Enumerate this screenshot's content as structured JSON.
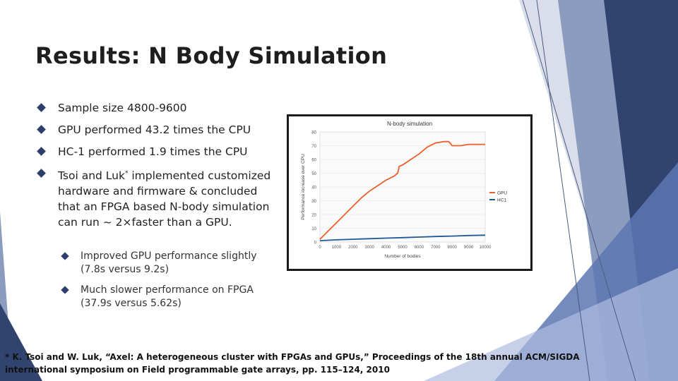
{
  "slide": {
    "title": "Results: N Body Simulation",
    "bullets": [
      {
        "text": "Sample size 4800-9600"
      },
      {
        "text": "GPU performed 43.2 times the CPU"
      },
      {
        "text": "HC-1 performed 1.9 times the CPU"
      },
      {
        "text_before": "Tsoi and Luk",
        "sup": "*",
        "text_after": " implemented customized hardware and  firmware & concluded that an FPGA based N-body simulation can run ~ 2×faster than a GPU."
      }
    ],
    "sub_bullets": [
      {
        "text": "Improved GPU performance slightly (7.8s versus 9.2s)"
      },
      {
        "text": "Much slower performance on FPGA (37.9s versus 5.62s)"
      }
    ],
    "footnote": "* K. Tsoi and W. Luk, “Axel: A heterogeneous cluster with FPGAs and GPUs,” Proceedings of the 18th annual ACM/SIGDA international symposium on Field programmable gate arrays, pp. 115–124, 2010"
  },
  "colors": {
    "accent_dark": "#2c3f6b",
    "gpu_line": "#e8602c",
    "hc1_line": "#1f5a96"
  },
  "chart_data": {
    "type": "line",
    "title": "N-body simulation",
    "xlabel": "Number of bodies",
    "ylabel": "Performance increase over CPU",
    "xlim": [
      0,
      10000
    ],
    "ylim": [
      0,
      80
    ],
    "xticks": [
      "0",
      "1000",
      "2000",
      "3000",
      "4000",
      "5000",
      "6000",
      "7000",
      "8000",
      "9000",
      "10000"
    ],
    "yticks": [
      "0",
      "10",
      "20",
      "30",
      "40",
      "50",
      "60",
      "70",
      "80"
    ],
    "legend": "right",
    "series": [
      {
        "name": "GPU",
        "color": "#e8602c",
        "points": [
          [
            0,
            2
          ],
          [
            500,
            8
          ],
          [
            1000,
            14
          ],
          [
            1500,
            20
          ],
          [
            2000,
            26
          ],
          [
            2500,
            32
          ],
          [
            3000,
            37
          ],
          [
            3500,
            41
          ],
          [
            4000,
            45
          ],
          [
            4500,
            48
          ],
          [
            4700,
            50
          ],
          [
            4800,
            55
          ],
          [
            5000,
            56
          ],
          [
            5500,
            60
          ],
          [
            6000,
            64
          ],
          [
            6500,
            69
          ],
          [
            7000,
            72
          ],
          [
            7500,
            73
          ],
          [
            7800,
            73
          ],
          [
            8000,
            70
          ],
          [
            8500,
            70
          ],
          [
            9000,
            71
          ],
          [
            9500,
            71
          ],
          [
            10000,
            71
          ]
        ]
      },
      {
        "name": "HC1",
        "color": "#1f5a96",
        "points": [
          [
            0,
            1
          ],
          [
            1000,
            1.6
          ],
          [
            2000,
            2
          ],
          [
            3000,
            2.4
          ],
          [
            4000,
            2.8
          ],
          [
            5000,
            3.2
          ],
          [
            6000,
            3.6
          ],
          [
            7000,
            4
          ],
          [
            8000,
            4.3
          ],
          [
            9000,
            4.7
          ],
          [
            10000,
            5
          ]
        ]
      }
    ]
  }
}
